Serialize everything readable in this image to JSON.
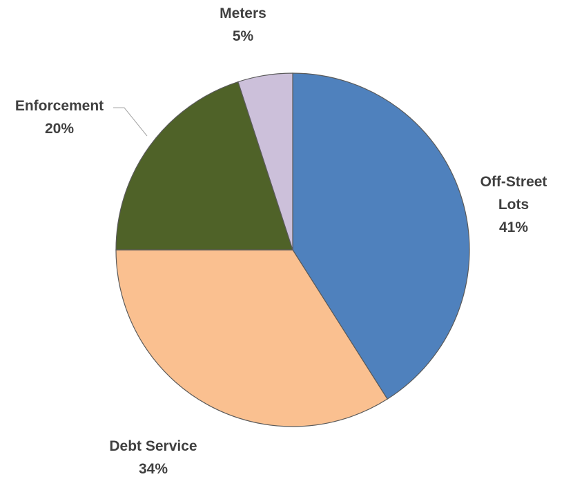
{
  "chart_data": {
    "type": "pie",
    "title": "",
    "slices": [
      {
        "name": "Off-Street Lots",
        "label_lines": [
          "Off-Street",
          "Lots"
        ],
        "pct_label": "41%",
        "value": 41,
        "color": "#4f81bd"
      },
      {
        "name": "Debt Service",
        "label_lines": [
          "Debt Service"
        ],
        "pct_label": "34%",
        "value": 34,
        "color": "#fac090"
      },
      {
        "name": "Enforcement",
        "label_lines": [
          "Enforcement"
        ],
        "pct_label": "20%",
        "value": 20,
        "color": "#4f6228"
      },
      {
        "name": "Meters",
        "label_lines": [
          "Meters"
        ],
        "pct_label": "5%",
        "value": 5,
        "color": "#ccc0da"
      }
    ],
    "legend": "none",
    "data_labels": "outside"
  }
}
